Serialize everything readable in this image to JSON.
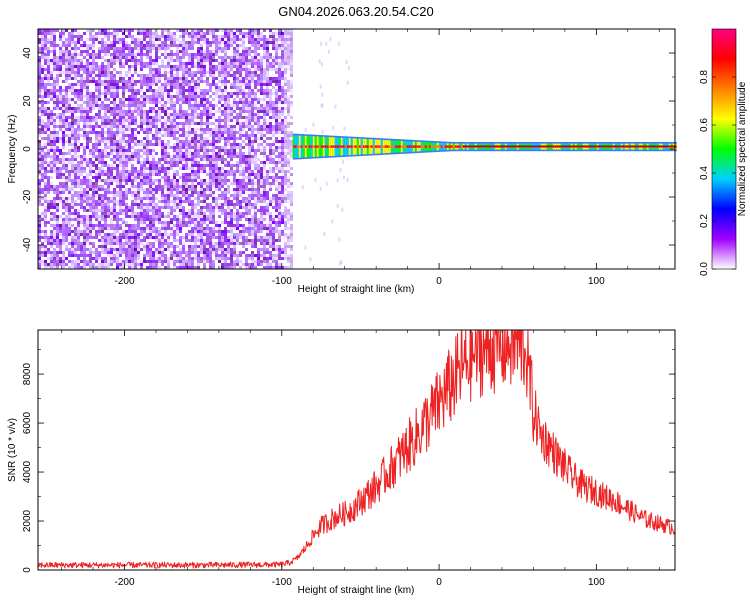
{
  "title": "GN04.2026.063.20.54.C20",
  "chart_data": [
    {
      "type": "heatmap",
      "title": "GN04.2026.063.20.54.C20",
      "xlabel": "Height of straight line (km)",
      "ylabel": "Frequency (Hz)",
      "xlim": [
        -255,
        150
      ],
      "ylim": [
        -50,
        50
      ],
      "x_ticks": [
        -200,
        -100,
        0,
        100
      ],
      "x_tick_labels": [
        "-200",
        "-100",
        "0",
        "100"
      ],
      "y_ticks": [
        -40,
        -20,
        0,
        20,
        40
      ],
      "y_tick_labels": [
        "-40",
        "-20",
        "0",
        "20",
        "40"
      ],
      "colorbar": {
        "label": "Normalized spectral amplitude",
        "range": [
          0,
          1
        ],
        "ticks": [
          0.0,
          0.2,
          0.4,
          0.6,
          0.8
        ],
        "tick_labels": [
          "0.0",
          "0.2",
          "0.4",
          "0.6",
          "0.8"
        ],
        "colors": [
          "#ffffff",
          "#a000ff",
          "#0000ff",
          "#00d0ff",
          "#00ff00",
          "#ffff00",
          "#ff8000",
          "#ff0000",
          "#ff0080"
        ]
      },
      "regions": [
        {
          "x_range": [
            -255,
            -93
          ],
          "freq_range": [
            -50,
            50
          ],
          "level": 0.12,
          "description": "broadband noise"
        },
        {
          "x_range": [
            -93,
            150
          ],
          "freq_center": 1,
          "freq_halfwidth_start": 5,
          "freq_halfwidth_end": 1.5,
          "level": 0.95
        }
      ]
    },
    {
      "type": "line",
      "xlabel": "Height of straight line (km)",
      "ylabel": "SNR (10 * v/v)",
      "xlim": [
        -255,
        150
      ],
      "ylim": [
        0,
        9800
      ],
      "x_ticks": [
        -200,
        -100,
        0,
        100
      ],
      "x_tick_labels": [
        "-200",
        "-100",
        "0",
        "100"
      ],
      "y_ticks": [
        0,
        2000,
        4000,
        6000,
        8000
      ],
      "y_tick_labels": [
        "0",
        "2000",
        "4000",
        "6000",
        "8000"
      ],
      "grid": false,
      "series": [
        {
          "color": "#ee2222",
          "x": [
            -255,
            -200,
            -150,
            -100,
            -95,
            -90,
            -85,
            -80,
            -75,
            -70,
            -65,
            -60,
            -55,
            -50,
            -45,
            -40,
            -35,
            -30,
            -25,
            -20,
            -15,
            -10,
            -5,
            0,
            5,
            10,
            15,
            20,
            25,
            30,
            35,
            40,
            45,
            50,
            55,
            60,
            65,
            70,
            75,
            80,
            85,
            90,
            95,
            100,
            105,
            110,
            115,
            120,
            125,
            130,
            135,
            140,
            145,
            150
          ],
          "y": [
            200,
            200,
            200,
            220,
            300,
            500,
            900,
            1400,
            1800,
            2000,
            2200,
            2300,
            2500,
            2800,
            3100,
            3400,
            3800,
            4200,
            4600,
            5000,
            5400,
            5900,
            6300,
            6800,
            7300,
            7800,
            8300,
            8700,
            9000,
            9100,
            9200,
            9250,
            9300,
            9300,
            9200,
            6500,
            5500,
            5100,
            4600,
            4200,
            3800,
            3500,
            3300,
            3200,
            3000,
            2900,
            2700,
            2500,
            2300,
            2100,
            2000,
            1900,
            1800,
            1700
          ]
        }
      ]
    }
  ]
}
